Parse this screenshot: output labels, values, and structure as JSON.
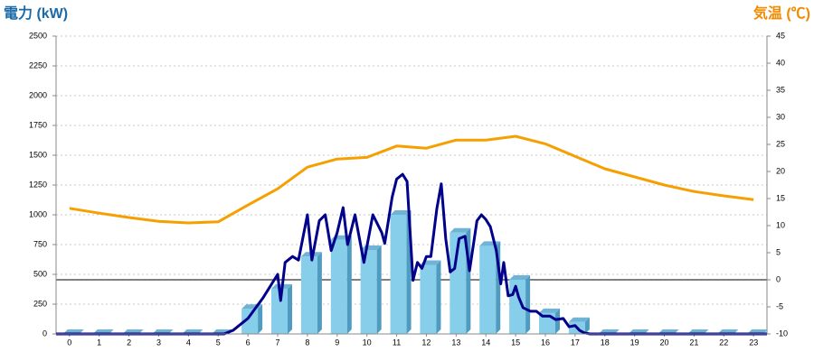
{
  "chart_data": {
    "type": "combo",
    "ylabel": "電力 (kW)",
    "y2label": "気温 (℃)",
    "xlim": [
      -0.45,
      23.45
    ],
    "xticks": [
      0,
      1,
      2,
      3,
      4,
      5,
      6,
      7,
      8,
      9,
      10,
      11,
      12,
      13,
      14,
      15,
      16,
      17,
      18,
      19,
      20,
      21,
      22,
      23
    ],
    "ylim": [
      0,
      2500
    ],
    "yticks": [
      0,
      250,
      500,
      750,
      1000,
      1250,
      1500,
      1750,
      2000,
      2250,
      2500
    ],
    "y2lim": [
      -10,
      45
    ],
    "y2ticks": [
      -10,
      -5,
      0,
      5,
      10,
      15,
      20,
      25,
      30,
      35,
      40,
      45
    ],
    "grid": true,
    "series": [
      {
        "type": "bar",
        "color": "#87ceeb",
        "x": [
          0,
          1,
          2,
          3,
          4,
          5,
          6,
          7,
          8,
          9,
          10,
          11,
          12,
          13,
          14,
          15,
          16,
          17,
          18,
          19,
          20,
          21,
          22,
          23
        ],
        "values": [
          0,
          0,
          0,
          0,
          0,
          0,
          210,
          380,
          650,
          790,
          705,
          1000,
          580,
          850,
          740,
          455,
          175,
          100,
          0,
          0,
          0,
          0,
          0,
          0
        ]
      },
      {
        "type": "line",
        "color": "#f5a000",
        "axis": "y2",
        "x": [
          0,
          1,
          2,
          3,
          4,
          5,
          6,
          7,
          8,
          9,
          10,
          11,
          12,
          13,
          14,
          15,
          16,
          17,
          18,
          19,
          20,
          21,
          22,
          23
        ],
        "values": [
          13.2,
          12.3,
          11.5,
          10.8,
          10.5,
          10.7,
          13.8,
          16.8,
          20.8,
          22.3,
          22.6,
          24.7,
          24.3,
          25.8,
          25.8,
          26.5,
          25.1,
          22.8,
          20.5,
          19,
          17.5,
          16.3,
          15.5,
          14.8
        ]
      },
      {
        "type": "line",
        "color": "#00008b",
        "x": [
          -0.45,
          5.2,
          5.5,
          6,
          6.5,
          7,
          7.1,
          7.25,
          7.5,
          7.7,
          8,
          8.15,
          8.4,
          8.6,
          8.8,
          9,
          9.2,
          9.35,
          9.6,
          9.9,
          10.2,
          10.5,
          10.6,
          10.85,
          11,
          11.2,
          11.35,
          11.55,
          11.7,
          11.85,
          12,
          12.15,
          12.35,
          12.5,
          12.65,
          12.8,
          12.95,
          13.1,
          13.3,
          13.45,
          13.7,
          13.85,
          14,
          14.15,
          14.35,
          14.5,
          14.6,
          14.75,
          14.9,
          15,
          15.1,
          15.25,
          15.5,
          15.7,
          15.9,
          16.15,
          16.35,
          16.6,
          16.8,
          17,
          17.15,
          17.3,
          17.5,
          23.45
        ],
        "values": [
          0,
          0,
          30,
          130,
          300,
          500,
          280,
          600,
          650,
          620,
          1000,
          620,
          950,
          1000,
          700,
          850,
          1060,
          750,
          1000,
          600,
          1000,
          850,
          760,
          1150,
          1300,
          1340,
          1280,
          450,
          600,
          550,
          650,
          650,
          1050,
          1260,
          800,
          520,
          550,
          800,
          820,
          530,
          950,
          1000,
          960,
          900,
          700,
          420,
          600,
          320,
          330,
          400,
          310,
          220,
          190,
          190,
          150,
          150,
          120,
          130,
          60,
          70,
          30,
          10,
          0,
          0
        ]
      }
    ]
  }
}
